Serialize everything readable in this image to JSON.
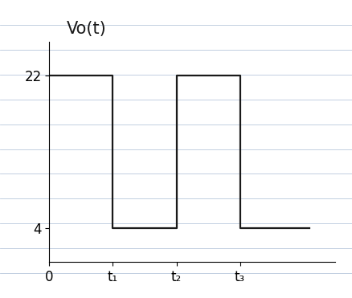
{
  "chart_data": {
    "type": "line",
    "ylabel": "Vo(t)",
    "x": [
      0,
      1,
      1,
      2,
      2,
      3,
      3,
      4.1
    ],
    "values": [
      22,
      22,
      4,
      4,
      22,
      22,
      4,
      4
    ],
    "color": "#1a1a1a",
    "xlim": [
      0,
      4.5
    ],
    "ylim": [
      0,
      26
    ],
    "xticks": [
      0,
      {
        "value": 1,
        "label": "t₁"
      },
      {
        "value": 2,
        "label": "t₂"
      },
      {
        "value": 3,
        "label": "t₃"
      }
    ],
    "yticks": [
      4,
      22
    ],
    "grid": false
  }
}
